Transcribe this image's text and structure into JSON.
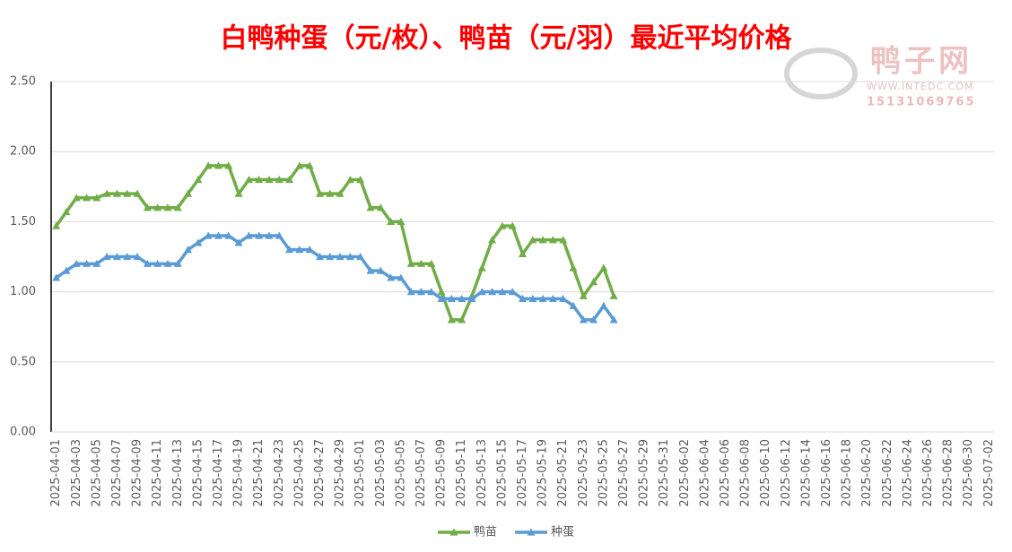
{
  "chart_data": {
    "type": "line",
    "title": "白鸭种蛋（元/枚）、鸭苗（元/羽）最近平均价格",
    "watermark": {
      "name": "鸭子网",
      "site": "WWW.INTEDC.COM",
      "phone": "15131069765"
    },
    "categories": [
      "2025-04-01",
      null,
      "2025-04-03",
      null,
      "2025-04-05",
      null,
      "2025-04-07",
      null,
      "2025-04-09",
      null,
      "2025-04-11",
      null,
      "2025-04-13",
      null,
      "2025-04-15",
      null,
      "2025-04-17",
      null,
      "2025-04-19",
      null,
      "2025-04-21",
      null,
      "2025-04-23",
      null,
      "2025-04-25",
      null,
      "2025-04-27",
      null,
      "2025-04-29",
      null,
      "2025-05-01",
      null,
      "2025-05-03",
      null,
      "2025-05-05",
      null,
      "2025-05-07",
      null,
      "2025-05-09",
      null,
      "2025-05-11",
      null,
      "2025-05-13",
      null,
      "2025-05-15",
      null,
      "2025-05-17",
      null,
      "2025-05-19",
      null,
      "2025-05-21",
      null,
      "2025-05-23",
      null,
      "2025-05-25",
      null,
      "2025-05-27",
      null,
      "2025-05-29",
      null,
      "2025-05-31",
      null,
      "2025-06-02",
      null,
      "2025-06-04",
      null,
      "2025-06-06",
      null,
      "2025-06-08",
      null,
      "2025-06-10",
      null,
      "2025-06-12",
      null,
      "2025-06-14",
      null,
      "2025-06-16",
      null,
      "2025-06-18",
      null,
      "2025-06-20",
      null,
      "2025-06-22",
      null,
      "2025-06-24",
      null,
      "2025-06-26",
      null,
      "2025-06-28",
      null,
      "2025-06-30",
      null,
      "2025-07-02"
    ],
    "series": [
      {
        "name": "鸭苗",
        "color": "#70ad47",
        "values": [
          1.47,
          1.57,
          1.67,
          1.67,
          1.67,
          1.7,
          1.7,
          1.7,
          1.7,
          1.6,
          1.6,
          1.6,
          1.6,
          1.7,
          1.8,
          1.9,
          1.9,
          1.9,
          1.7,
          1.8,
          1.8,
          1.8,
          1.8,
          1.8,
          1.9,
          1.9,
          1.7,
          1.7,
          1.7,
          1.8,
          1.8,
          1.6,
          1.6,
          1.5,
          1.5,
          1.2,
          1.2,
          1.2,
          1.0,
          0.8,
          0.8,
          0.97,
          1.17,
          1.37,
          1.47,
          1.47,
          1.27,
          1.37,
          1.37,
          1.37,
          1.37,
          1.17,
          0.97,
          1.07,
          1.17,
          0.97,
          null,
          null,
          null,
          null,
          null,
          null,
          null,
          null,
          null,
          null,
          null,
          null,
          null,
          null,
          null,
          null,
          null,
          null,
          null,
          null,
          null,
          null,
          null,
          null,
          null,
          null,
          null,
          null,
          null,
          null,
          null,
          null,
          null,
          null,
          null,
          null,
          null
        ]
      },
      {
        "name": "种蛋",
        "color": "#5b9bd5",
        "values": [
          1.1,
          1.15,
          1.2,
          1.2,
          1.2,
          1.25,
          1.25,
          1.25,
          1.25,
          1.2,
          1.2,
          1.2,
          1.2,
          1.3,
          1.35,
          1.4,
          1.4,
          1.4,
          1.35,
          1.4,
          1.4,
          1.4,
          1.4,
          1.3,
          1.3,
          1.3,
          1.25,
          1.25,
          1.25,
          1.25,
          1.25,
          1.15,
          1.15,
          1.1,
          1.1,
          1.0,
          1.0,
          1.0,
          0.95,
          0.95,
          0.95,
          0.95,
          1.0,
          1.0,
          1.0,
          1.0,
          0.95,
          0.95,
          0.95,
          0.95,
          0.95,
          0.9,
          0.8,
          0.8,
          0.9,
          0.8,
          null,
          null,
          null,
          null,
          null,
          null,
          null,
          null,
          null,
          null,
          null,
          null,
          null,
          null,
          null,
          null,
          null,
          null,
          null,
          null,
          null,
          null,
          null,
          null,
          null,
          null,
          null,
          null,
          null,
          null,
          null,
          null,
          null,
          null,
          null,
          null,
          null
        ]
      }
    ],
    "ylim": [
      0,
      2.5
    ],
    "yticks": [
      {
        "value": 0,
        "label": "0.00"
      },
      {
        "value": 0.5,
        "label": "0.50"
      },
      {
        "value": 1,
        "label": "1.00"
      },
      {
        "value": 1.5,
        "label": "1.50"
      },
      {
        "value": 2,
        "label": "2.00"
      },
      {
        "value": 2.5,
        "label": "2.50"
      }
    ],
    "grid": true,
    "legend": "bottom"
  }
}
